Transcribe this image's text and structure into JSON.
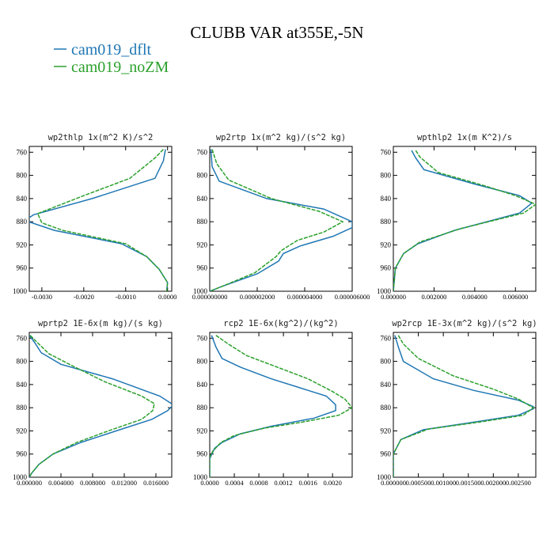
{
  "figure": {
    "title": "CLUBB VAR at355E,-5N",
    "legend": [
      {
        "name": "cam019_dflt",
        "color": "#1f77b4"
      },
      {
        "name": "cam019_noZM",
        "color": "#2ca02c"
      }
    ]
  },
  "chart_data": [
    {
      "type": "line",
      "title": "wp2thlp  1x(m^2 K)/s^2",
      "xlim": [
        -0.0033,
        0.0001
      ],
      "ylim": [
        1000,
        750
      ],
      "xticks": [
        -0.003,
        -0.002,
        -0.001,
        0.0
      ],
      "xtick_labels": [
        "-0.0030",
        "-0.0020",
        "-0.0010",
        "0.0000"
      ],
      "yticks": [
        760,
        800,
        840,
        880,
        920,
        960,
        1000
      ],
      "series": [
        {
          "name": "cam019_dflt",
          "points": [
            [
              -5e-05,
              755
            ],
            [
              -0.0001,
              775
            ],
            [
              -0.0003,
              805
            ],
            [
              -0.0018,
              840
            ],
            [
              -0.0032,
              868
            ],
            [
              -0.0034,
              878
            ],
            [
              -0.0027,
              895
            ],
            [
              -0.0011,
              918
            ],
            [
              -0.0005,
              940
            ],
            [
              -0.0002,
              962
            ],
            [
              0.0,
              985
            ],
            [
              -2e-05,
              1000
            ]
          ]
        },
        {
          "name": "cam019_noZM",
          "points": [
            [
              -0.0001,
              755
            ],
            [
              -0.0003,
              770
            ],
            [
              -0.0009,
              805
            ],
            [
              -0.002,
              835
            ],
            [
              -0.0031,
              866
            ],
            [
              -0.003,
              882
            ],
            [
              -0.0025,
              895
            ],
            [
              -0.001,
              918
            ],
            [
              -0.0005,
              940
            ],
            [
              -0.0002,
              962
            ],
            [
              0.0,
              985
            ],
            [
              -2e-05,
              1000
            ]
          ]
        }
      ]
    },
    {
      "type": "line",
      "title": "wp2rtp  1x(m^2 kg)/(s^2 kg)",
      "xlim": [
        0.0,
        6e-06
      ],
      "ylim": [
        1000,
        750
      ],
      "xticks": [
        0.0,
        2e-06,
        4e-06,
        6e-06
      ],
      "xtick_labels": [
        "0.000000000",
        "0.000002000",
        "0.000004000",
        "0.000006000"
      ],
      "yticks": [
        760,
        800,
        840,
        880,
        920,
        960,
        1000
      ],
      "series": [
        {
          "name": "cam019_dflt",
          "points": [
            [
              5e-08,
              755
            ],
            [
              1e-07,
              785
            ],
            [
              4e-07,
              810
            ],
            [
              2.4e-06,
              840
            ],
            [
              4.8e-06,
              858
            ],
            [
              6e-06,
              880
            ],
            [
              6e-06,
              890
            ],
            [
              5.2e-06,
              905
            ],
            [
              3.8e-06,
              922
            ],
            [
              3.1e-06,
              935
            ],
            [
              2.9e-06,
              948
            ],
            [
              2e-06,
              970
            ],
            [
              5e-07,
              992
            ],
            [
              0.0,
              1000
            ]
          ]
        },
        {
          "name": "cam019_noZM",
          "points": [
            [
              1e-07,
              755
            ],
            [
              3e-07,
              780
            ],
            [
              8e-07,
              808
            ],
            [
              2.6e-06,
              840
            ],
            [
              4.6e-06,
              862
            ],
            [
              5.6e-06,
              880
            ],
            [
              4.8e-06,
              898
            ],
            [
              3.7e-06,
              912
            ],
            [
              3e-06,
              930
            ],
            [
              2.8e-06,
              940
            ],
            [
              1.9e-06,
              968
            ],
            [
              5e-07,
              992
            ],
            [
              0.0,
              1000
            ]
          ]
        }
      ]
    },
    {
      "type": "line",
      "title": "wpthlp2  1x(m K^2)/s",
      "xlim": [
        0.0,
        0.007
      ],
      "ylim": [
        1000,
        750
      ],
      "xticks": [
        0.0,
        0.002,
        0.004,
        0.006
      ],
      "xtick_labels": [
        "0.000000",
        "0.002000",
        "0.004000",
        "0.006000"
      ],
      "yticks": [
        760,
        800,
        840,
        880,
        920,
        960,
        1000
      ],
      "series": [
        {
          "name": "cam019_dflt",
          "points": [
            [
              0.0009,
              757
            ],
            [
              0.0011,
              770
            ],
            [
              0.0015,
              790
            ],
            [
              0.004,
              815
            ],
            [
              0.0062,
              835
            ],
            [
              0.0068,
              848
            ],
            [
              0.0062,
              865
            ],
            [
              0.003,
              895
            ],
            [
              0.0012,
              918
            ],
            [
              0.0005,
              935
            ],
            [
              0.0001,
              960
            ],
            [
              0.0,
              1000
            ]
          ]
        },
        {
          "name": "cam019_noZM",
          "points": [
            [
              0.0011,
              757
            ],
            [
              0.0013,
              768
            ],
            [
              0.0022,
              795
            ],
            [
              0.0045,
              818
            ],
            [
              0.006,
              835
            ],
            [
              0.007,
              850
            ],
            [
              0.0064,
              865
            ],
            [
              0.0033,
              892
            ],
            [
              0.0013,
              915
            ],
            [
              0.0005,
              935
            ],
            [
              0.0001,
              960
            ],
            [
              0.0,
              1000
            ]
          ]
        }
      ]
    },
    {
      "type": "line",
      "title": "wprtp2  1E-6x(m kg)/(s kg)",
      "xlim": [
        0.0,
        0.018
      ],
      "ylim": [
        1000,
        750
      ],
      "xticks": [
        0.0,
        0.004,
        0.008,
        0.012,
        0.016
      ],
      "xtick_labels": [
        "0.000000",
        "0.004000",
        "0.008000",
        "0.012000",
        "0.016000"
      ],
      "yticks": [
        760,
        800,
        840,
        880,
        920,
        960,
        1000
      ],
      "series": [
        {
          "name": "cam019_dflt",
          "points": [
            [
              0.0,
              755
            ],
            [
              0.0008,
              770
            ],
            [
              0.0015,
              785
            ],
            [
              0.004,
              805
            ],
            [
              0.0105,
              830
            ],
            [
              0.0165,
              860
            ],
            [
              0.0182,
              875
            ],
            [
              0.0175,
              885
            ],
            [
              0.0155,
              900
            ],
            [
              0.011,
              920
            ],
            [
              0.0065,
              940
            ],
            [
              0.003,
              960
            ],
            [
              0.0012,
              978
            ],
            [
              0.0003,
              993
            ],
            [
              0.0,
              1000
            ]
          ]
        },
        {
          "name": "cam019_noZM",
          "points": [
            [
              0.0001,
              755
            ],
            [
              0.0012,
              770
            ],
            [
              0.0025,
              787
            ],
            [
              0.0055,
              808
            ],
            [
              0.0095,
              835
            ],
            [
              0.0142,
              860
            ],
            [
              0.0158,
              873
            ],
            [
              0.0156,
              885
            ],
            [
              0.0142,
              900
            ],
            [
              0.01,
              920
            ],
            [
              0.006,
              940
            ],
            [
              0.003,
              960
            ],
            [
              0.0012,
              978
            ],
            [
              0.0003,
              993
            ],
            [
              0.0,
              1000
            ]
          ]
        }
      ]
    },
    {
      "type": "line",
      "title": "rcp2  1E-6x(kg^2)/(kg^2)",
      "xlim": [
        0.0,
        0.00232
      ],
      "ylim": [
        1000,
        750
      ],
      "xticks": [
        0.0,
        0.0004,
        0.0008,
        0.0012,
        0.0016,
        0.002
      ],
      "xtick_labels": [
        "0.0000",
        "0.0004",
        "0.0008",
        "0.0012",
        "0.0016",
        "0.0020"
      ],
      "yticks": [
        760,
        800,
        840,
        880,
        920,
        960,
        1000
      ],
      "series": [
        {
          "name": "cam019_dflt",
          "points": [
            [
              3e-05,
              755
            ],
            [
              0.0001,
              775
            ],
            [
              0.0002,
              795
            ],
            [
              0.0005,
              810
            ],
            [
              0.001,
              830
            ],
            [
              0.0016,
              850
            ],
            [
              0.0019,
              860
            ],
            [
              0.00205,
              875
            ],
            [
              0.00205,
              885
            ],
            [
              0.0017,
              898
            ],
            [
              0.001,
              912
            ],
            [
              0.0005,
              925
            ],
            [
              0.0002,
              940
            ],
            [
              8e-05,
              950
            ],
            [
              0.0,
              968
            ],
            [
              0.0,
              1000
            ]
          ]
        },
        {
          "name": "cam019_noZM",
          "points": [
            [
              0.0001,
              755
            ],
            [
              0.0003,
              770
            ],
            [
              0.0006,
              790
            ],
            [
              0.0011,
              810
            ],
            [
              0.0016,
              830
            ],
            [
              0.002,
              852
            ],
            [
              0.0022,
              865
            ],
            [
              0.00232,
              880
            ],
            [
              0.0021,
              893
            ],
            [
              0.0015,
              905
            ],
            [
              0.0009,
              915
            ],
            [
              0.0004,
              928
            ],
            [
              0.00018,
              940
            ],
            [
              5e-05,
              955
            ],
            [
              0.0,
              965
            ],
            [
              0.0,
              1000
            ]
          ]
        }
      ]
    },
    {
      "type": "line",
      "title": "wp2rcp  1E-3x(m^2 kg)/(s^2 kg)",
      "xlim": [
        0.0,
        0.00285
      ],
      "ylim": [
        1000,
        750
      ],
      "xticks": [
        0.0,
        0.0005,
        0.001,
        0.0015,
        0.002,
        0.0025
      ],
      "xtick_labels": [
        "0.000000",
        "0.000500",
        "0.001000",
        "0.001500",
        "0.002000",
        "0.002500"
      ],
      "yticks": [
        760,
        800,
        840,
        880,
        920,
        960,
        1000
      ],
      "series": [
        {
          "name": "cam019_dflt",
          "points": [
            [
              3e-05,
              755
            ],
            [
              0.0001,
              775
            ],
            [
              0.0002,
              800
            ],
            [
              0.0008,
              830
            ],
            [
              0.0016,
              850
            ],
            [
              0.0025,
              867
            ],
            [
              0.0028,
              878
            ],
            [
              0.0028,
              882
            ],
            [
              0.0025,
              893
            ],
            [
              0.0016,
              905
            ],
            [
              0.0006,
              918
            ],
            [
              0.00015,
              935
            ],
            [
              0.0,
              960
            ],
            [
              0.0,
              1000
            ]
          ]
        },
        {
          "name": "cam019_noZM",
          "points": [
            [
              0.0001,
              755
            ],
            [
              0.0002,
              770
            ],
            [
              0.0005,
              795
            ],
            [
              0.0012,
              825
            ],
            [
              0.002,
              848
            ],
            [
              0.0025,
              865
            ],
            [
              0.0028,
              880
            ],
            [
              0.0026,
              893
            ],
            [
              0.0017,
              905
            ],
            [
              0.0007,
              917
            ],
            [
              0.00015,
              935
            ],
            [
              0.0,
              960
            ],
            [
              0.0,
              1000
            ]
          ]
        }
      ]
    }
  ]
}
